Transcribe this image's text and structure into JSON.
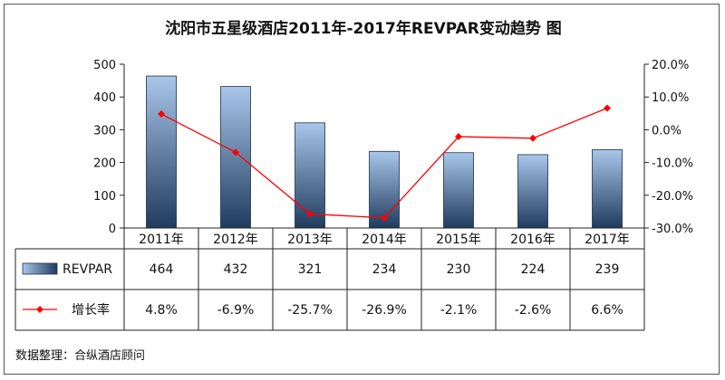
{
  "chart_data": {
    "type": "bar",
    "title": "沈阳市五星级酒店2011年-2017年REVPAR变动趋势 图",
    "categories": [
      "2011年",
      "2012年",
      "2013年",
      "2014年",
      "2015年",
      "2016年",
      "2017年"
    ],
    "series": [
      {
        "name": "REVPAR",
        "type": "bar",
        "axis": "left",
        "values": [
          464,
          432,
          321,
          234,
          230,
          224,
          239
        ]
      },
      {
        "name": "增长率",
        "type": "line",
        "axis": "right",
        "values": [
          4.8,
          -6.9,
          -25.7,
          -26.9,
          -2.1,
          -2.6,
          6.6
        ],
        "labels": [
          "4.8%",
          "-6.9%",
          "-25.7%",
          "-26.9%",
          "-2.1%",
          "-2.6%",
          "6.6%"
        ]
      }
    ],
    "y_left": {
      "ylim": [
        0,
        500
      ],
      "ticks": [
        "0",
        "100",
        "200",
        "300",
        "400",
        "500"
      ]
    },
    "y_right": {
      "ylim": [
        -30,
        20
      ],
      "ticks": [
        "-30.0%",
        "-20.0%",
        "-10.0%",
        "0.0%",
        "10.0%",
        "20.0%"
      ]
    },
    "grid": false,
    "legend": "data-table",
    "colors": {
      "bar_top": "#a9c7ea",
      "bar_bottom": "#1f3b5e",
      "line": "#ff0000"
    }
  },
  "source": "数据整理：合纵酒店顾问"
}
